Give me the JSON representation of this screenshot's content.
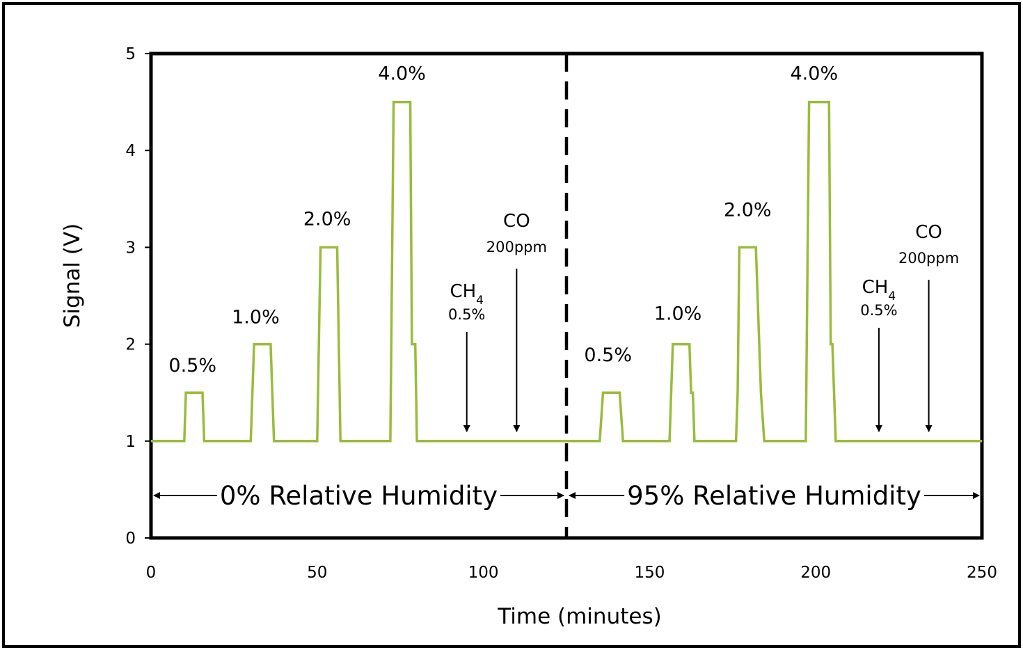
{
  "chart_data": {
    "type": "line",
    "title": "",
    "xlabel": "Time (minutes)",
    "ylabel": "Signal (V)",
    "xlim": [
      0,
      250
    ],
    "ylim": [
      0,
      5
    ],
    "xticks": [
      "0",
      "50",
      "100",
      "150",
      "200",
      "250"
    ],
    "yticks": [
      "0",
      "1",
      "2",
      "3",
      "4",
      "5"
    ],
    "grid": false,
    "line_color": "#9bbb3b",
    "series": [
      {
        "x": [
          0,
          10,
          10.5,
          15.5,
          16,
          30,
          31,
          36,
          37,
          50,
          51,
          56,
          57,
          72,
          73,
          78,
          78.5,
          79.5,
          80,
          125,
          135,
          136,
          141,
          142,
          156,
          157,
          162,
          162.5,
          163,
          163.5,
          176,
          176.5,
          177,
          182,
          183,
          183.5,
          184.5,
          197,
          198,
          204,
          204.5,
          205,
          205.5,
          206,
          250
        ],
        "y": [
          1,
          1,
          1.5,
          1.5,
          1,
          1,
          2,
          2,
          1,
          1,
          3,
          3,
          1,
          1,
          4.5,
          4.5,
          2,
          2,
          1,
          1,
          1,
          1.5,
          1.5,
          1,
          1,
          2,
          2,
          1.5,
          1.5,
          1,
          1,
          1.5,
          3,
          3,
          2,
          1.5,
          1,
          1,
          4.5,
          4.5,
          2,
          2,
          1.5,
          1,
          1
        ]
      }
    ],
    "divider_x": 125,
    "annotations": {
      "peaks_dry": [
        {
          "label": "0.5%",
          "x": 12.5,
          "y": 1.5
        },
        {
          "label": "1.0%",
          "x": 31.5,
          "y": 2.0
        },
        {
          "label": "2.0%",
          "x": 53.0,
          "y": 3.0
        },
        {
          "label": "4.0%",
          "x": 75.5,
          "y": 4.5
        }
      ],
      "peaks_humid": [
        {
          "label": "0.5%",
          "x": 137.5,
          "y": 1.5
        },
        {
          "label": "1.0%",
          "x": 158.5,
          "y": 2.0
        },
        {
          "label": "2.0%",
          "x": 179.5,
          "y": 3.0
        },
        {
          "label": "4.0%",
          "x": 199.5,
          "y": 4.5
        }
      ],
      "ch4_dry": {
        "label": "CH",
        "subscript": "4",
        "sub_label": "0.5%",
        "x": 95
      },
      "co_dry": {
        "label": "CO",
        "sub_label": "200ppm",
        "x": 110
      },
      "ch4_humid": {
        "label": "CH",
        "subscript": "4",
        "sub_label": "0.5%",
        "x": 219
      },
      "co_humid": {
        "label": "CO",
        "sub_label": "200ppm",
        "x": 234
      },
      "region_dry": "0% Relative Humidity",
      "region_humid": "95% Relative Humidity"
    }
  }
}
